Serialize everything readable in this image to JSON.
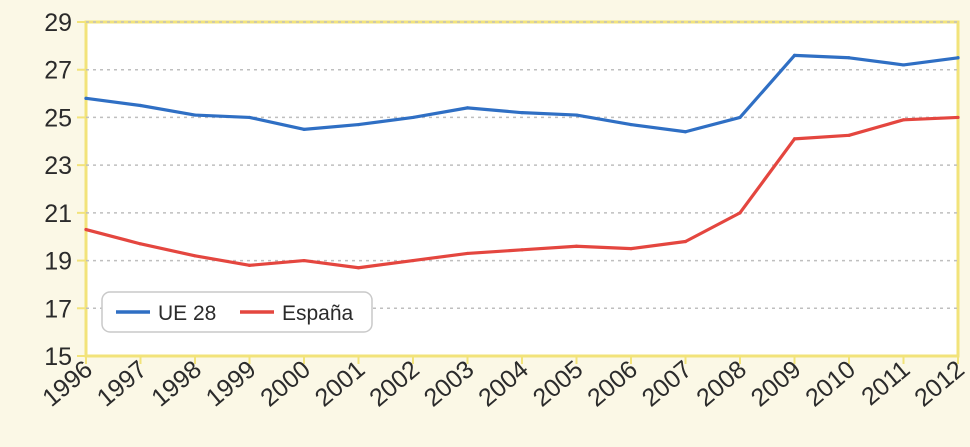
{
  "chart_data": {
    "type": "line",
    "title": "",
    "xlabel": "",
    "ylabel": "",
    "x": [
      "1996",
      "1997",
      "1998",
      "1999",
      "2000",
      "2001",
      "2002",
      "2003",
      "2004",
      "2005",
      "2006",
      "2007",
      "2008",
      "2009",
      "2010",
      "2011",
      "2012"
    ],
    "ylim": [
      15,
      29
    ],
    "yticks": [
      15,
      17,
      19,
      21,
      23,
      25,
      27,
      29
    ],
    "grid": true,
    "legend_position": "bottom-left",
    "series": [
      {
        "name": "UE 28",
        "color": "#2f6fc4",
        "values": [
          25.8,
          25.5,
          25.1,
          25.0,
          24.5,
          24.7,
          25.0,
          25.4,
          25.2,
          25.1,
          24.7,
          24.4,
          25.0,
          27.6,
          27.5,
          27.2,
          27.5
        ]
      },
      {
        "name": "España",
        "color": "#e4463f",
        "values": [
          20.3,
          19.7,
          19.2,
          18.8,
          19.0,
          18.7,
          19.0,
          19.3,
          19.45,
          19.6,
          19.5,
          19.8,
          21.0,
          24.1,
          24.25,
          24.9,
          25.0
        ]
      }
    ]
  }
}
